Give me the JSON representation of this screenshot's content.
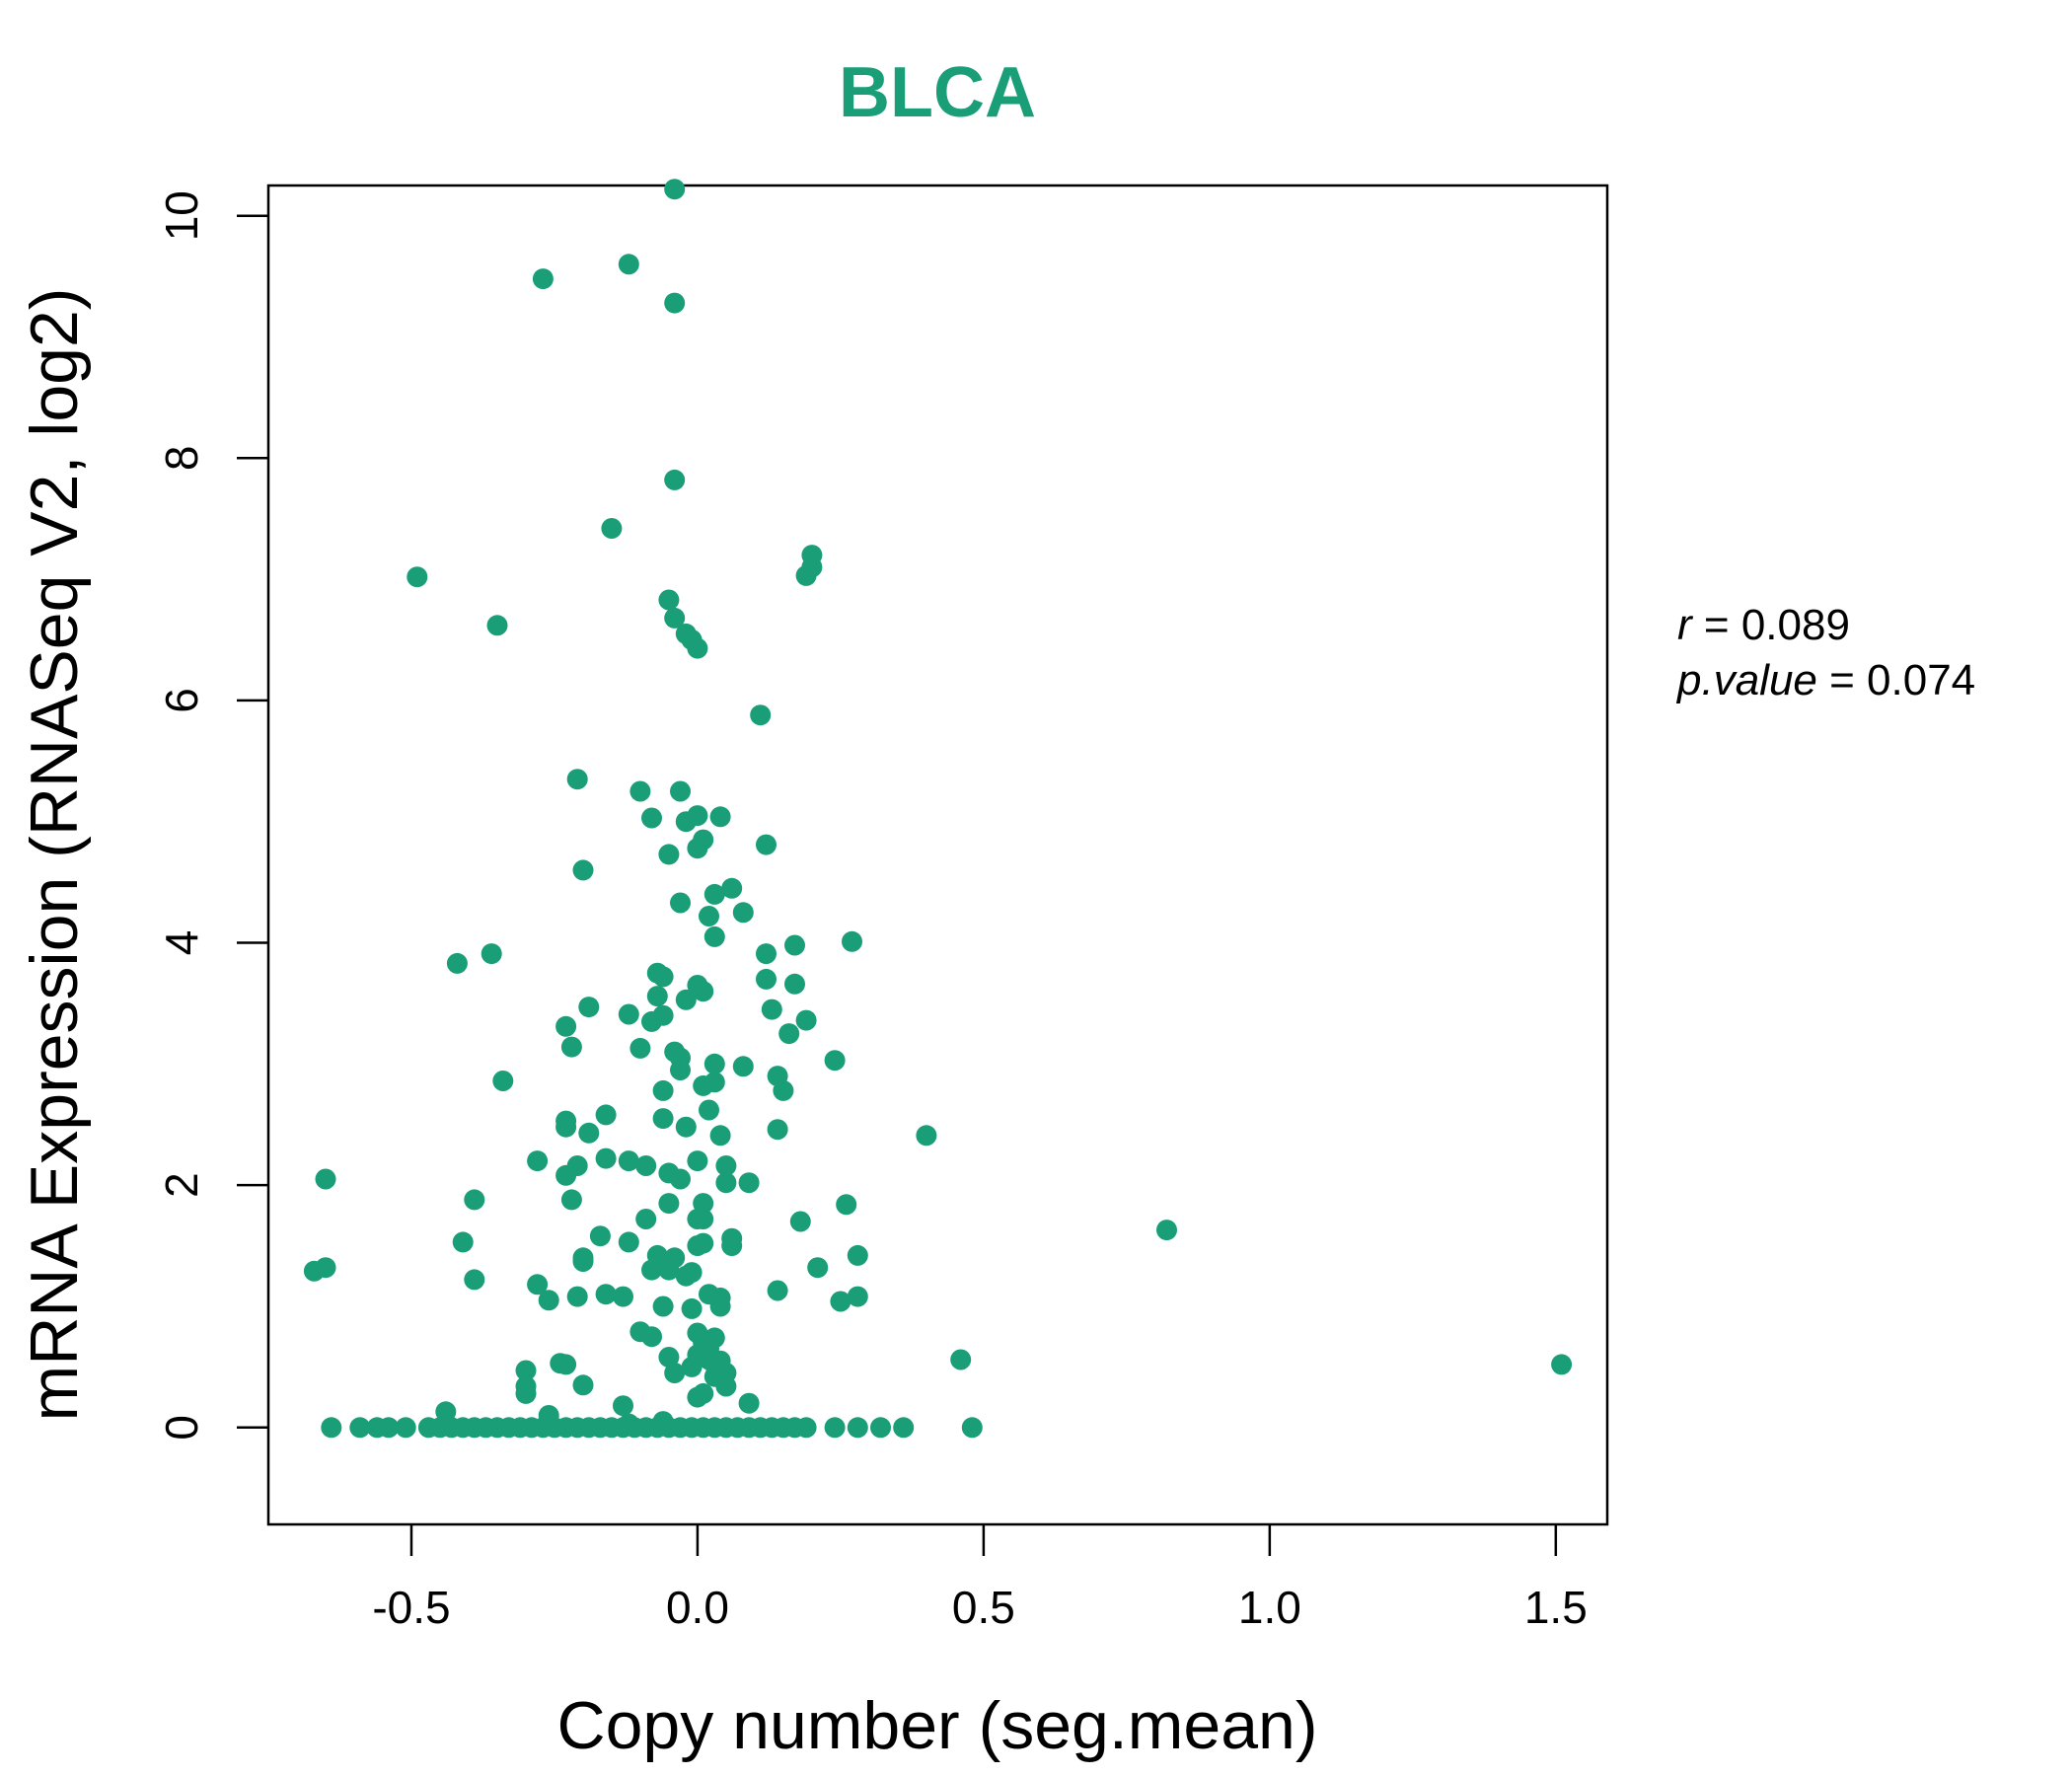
{
  "chart_data": {
    "type": "scatter",
    "title": "BLCA",
    "xlabel": "Copy number (seg.mean)",
    "ylabel": "mRNA Expression (RNASeq V2, log2)",
    "xlim": [
      -0.75,
      1.59
    ],
    "ylim": [
      -0.8,
      10.25
    ],
    "xticks": [
      -0.5,
      0.0,
      0.5,
      1.0,
      1.5
    ],
    "xtick_labels": [
      "-0.5",
      "0.0",
      "0.5",
      "1.0",
      "1.5"
    ],
    "yticks": [
      0,
      2,
      4,
      6,
      8,
      10
    ],
    "ytick_labels": [
      "0",
      "2",
      "4",
      "6",
      "8",
      "10"
    ],
    "grid": false,
    "point_color": "#1a9e77",
    "title_color": "#1a9e77",
    "stats": {
      "r_label": "r",
      "r_value": "0.089",
      "p_label": "p.value",
      "p_value": "0.074"
    },
    "points": [
      [
        -0.04,
        10.22
      ],
      [
        -0.12,
        9.6
      ],
      [
        -0.27,
        9.48
      ],
      [
        -0.04,
        9.28
      ],
      [
        -0.04,
        7.82
      ],
      [
        -0.15,
        7.42
      ],
      [
        -0.49,
        7.02
      ],
      [
        0.2,
        7.2
      ],
      [
        0.2,
        7.1
      ],
      [
        0.19,
        7.03
      ],
      [
        -0.05,
        6.83
      ],
      [
        -0.04,
        6.68
      ],
      [
        -0.02,
        6.55
      ],
      [
        -0.35,
        6.62
      ],
      [
        -0.01,
        6.5
      ],
      [
        0.0,
        6.43
      ],
      [
        0.11,
        5.88
      ],
      [
        -0.21,
        5.35
      ],
      [
        -0.1,
        5.25
      ],
      [
        -0.03,
        5.25
      ],
      [
        0.0,
        5.05
      ],
      [
        0.04,
        5.04
      ],
      [
        -0.08,
        5.03
      ],
      [
        -0.02,
        5.0
      ],
      [
        0.01,
        4.85
      ],
      [
        0.12,
        4.81
      ],
      [
        0.0,
        4.78
      ],
      [
        -0.05,
        4.73
      ],
      [
        -0.2,
        4.6
      ],
      [
        0.06,
        4.45
      ],
      [
        0.03,
        4.4
      ],
      [
        -0.03,
        4.33
      ],
      [
        0.08,
        4.25
      ],
      [
        0.02,
        4.22
      ],
      [
        0.27,
        4.01
      ],
      [
        0.03,
        4.05
      ],
      [
        0.17,
        3.98
      ],
      [
        -0.36,
        3.91
      ],
      [
        0.12,
        3.91
      ],
      [
        -0.42,
        3.83
      ],
      [
        -0.07,
        3.75
      ],
      [
        -0.06,
        3.72
      ],
      [
        0.12,
        3.7
      ],
      [
        0.17,
        3.66
      ],
      [
        0.0,
        3.65
      ],
      [
        0.01,
        3.6
      ],
      [
        -0.07,
        3.56
      ],
      [
        -0.02,
        3.53
      ],
      [
        -0.19,
        3.47
      ],
      [
        0.13,
        3.45
      ],
      [
        -0.12,
        3.41
      ],
      [
        -0.06,
        3.4
      ],
      [
        -0.08,
        3.35
      ],
      [
        0.19,
        3.36
      ],
      [
        -0.23,
        3.31
      ],
      [
        0.16,
        3.25
      ],
      [
        -0.22,
        3.14
      ],
      [
        -0.1,
        3.13
      ],
      [
        -0.04,
        3.1
      ],
      [
        -0.03,
        3.05
      ],
      [
        0.24,
        3.03
      ],
      [
        -0.03,
        2.95
      ],
      [
        0.03,
        3.0
      ],
      [
        0.08,
        2.98
      ],
      [
        0.14,
        2.9
      ],
      [
        -0.34,
        2.86
      ],
      [
        0.01,
        2.82
      ],
      [
        -0.06,
        2.78
      ],
      [
        0.03,
        2.85
      ],
      [
        0.15,
        2.78
      ],
      [
        0.02,
        2.62
      ],
      [
        -0.16,
        2.58
      ],
      [
        -0.06,
        2.55
      ],
      [
        -0.23,
        2.53
      ],
      [
        -0.23,
        2.48
      ],
      [
        -0.02,
        2.48
      ],
      [
        0.14,
        2.46
      ],
      [
        0.04,
        2.41
      ],
      [
        -0.19,
        2.43
      ],
      [
        0.4,
        2.41
      ],
      [
        -0.16,
        2.22
      ],
      [
        -0.12,
        2.2
      ],
      [
        -0.28,
        2.2
      ],
      [
        -0.09,
        2.16
      ],
      [
        0.0,
        2.2
      ],
      [
        0.05,
        2.16
      ],
      [
        -0.21,
        2.16
      ],
      [
        -0.05,
        2.1
      ],
      [
        -0.23,
        2.08
      ],
      [
        -0.03,
        2.05
      ],
      [
        -0.65,
        2.05
      ],
      [
        0.05,
        2.02
      ],
      [
        0.09,
        2.02
      ],
      [
        -0.39,
        1.88
      ],
      [
        -0.22,
        1.88
      ],
      [
        0.01,
        1.85
      ],
      [
        -0.05,
        1.85
      ],
      [
        0.26,
        1.84
      ],
      [
        0.01,
        1.72
      ],
      [
        0.0,
        1.72
      ],
      [
        -0.09,
        1.72
      ],
      [
        0.18,
        1.7
      ],
      [
        -0.2,
        1.4
      ],
      [
        -0.12,
        1.53
      ],
      [
        0.82,
        1.63
      ],
      [
        -0.41,
        1.53
      ],
      [
        0.06,
        1.56
      ],
      [
        0.06,
        1.5
      ],
      [
        0.0,
        1.5
      ],
      [
        -0.17,
        1.58
      ],
      [
        0.01,
        1.52
      ],
      [
        -0.07,
        1.42
      ],
      [
        -0.04,
        1.4
      ],
      [
        0.28,
        1.42
      ],
      [
        -0.2,
        1.37
      ],
      [
        -0.05,
        1.3
      ],
      [
        -0.08,
        1.3
      ],
      [
        -0.01,
        1.28
      ],
      [
        -0.02,
        1.25
      ],
      [
        0.21,
        1.32
      ],
      [
        -0.65,
        1.32
      ],
      [
        -0.67,
        1.29
      ],
      [
        -0.39,
        1.22
      ],
      [
        -0.28,
        1.18
      ],
      [
        0.14,
        1.13
      ],
      [
        -0.16,
        1.1
      ],
      [
        -0.21,
        1.08
      ],
      [
        -0.13,
        1.08
      ],
      [
        0.02,
        1.1
      ],
      [
        0.04,
        1.07
      ],
      [
        -0.06,
        1.0
      ],
      [
        0.25,
        1.04
      ],
      [
        0.28,
        1.08
      ],
      [
        -0.26,
        1.05
      ],
      [
        0.04,
        1.0
      ],
      [
        -0.01,
        0.98
      ],
      [
        0.0,
        0.78
      ],
      [
        -0.1,
        0.79
      ],
      [
        -0.08,
        0.75
      ],
      [
        0.03,
        0.74
      ],
      [
        0.02,
        0.65
      ],
      [
        0.0,
        0.6
      ],
      [
        0.01,
        0.7
      ],
      [
        -0.05,
        0.58
      ],
      [
        0.04,
        0.55
      ],
      [
        0.02,
        0.56
      ],
      [
        0.46,
        0.56
      ],
      [
        -0.24,
        0.53
      ],
      [
        -0.23,
        0.52
      ],
      [
        -0.01,
        0.5
      ],
      [
        0.03,
        0.52
      ],
      [
        -0.3,
        0.47
      ],
      [
        -0.04,
        0.45
      ],
      [
        0.05,
        0.45
      ],
      [
        0.03,
        0.42
      ],
      [
        -0.3,
        0.34
      ],
      [
        0.05,
        0.34
      ],
      [
        -0.2,
        0.35
      ],
      [
        -0.3,
        0.28
      ],
      [
        1.51,
        0.52
      ],
      [
        0.0,
        0.25
      ],
      [
        0.01,
        0.28
      ],
      [
        0.09,
        0.2
      ],
      [
        -0.13,
        0.18
      ],
      [
        -0.44,
        0.13
      ],
      [
        -0.26,
        0.1
      ],
      [
        -0.06,
        0.05
      ],
      [
        -0.12,
        0.03
      ],
      [
        -0.64,
        0
      ],
      [
        -0.59,
        0
      ],
      [
        -0.56,
        0
      ],
      [
        -0.54,
        0
      ],
      [
        -0.51,
        0
      ],
      [
        -0.47,
        0
      ],
      [
        -0.45,
        0
      ],
      [
        -0.43,
        0
      ],
      [
        -0.41,
        0
      ],
      [
        -0.39,
        0
      ],
      [
        -0.37,
        0
      ],
      [
        -0.35,
        0
      ],
      [
        -0.33,
        0
      ],
      [
        -0.31,
        0
      ],
      [
        -0.29,
        0
      ],
      [
        -0.27,
        0
      ],
      [
        -0.25,
        0
      ],
      [
        -0.23,
        0
      ],
      [
        -0.21,
        0
      ],
      [
        -0.19,
        0
      ],
      [
        -0.17,
        0
      ],
      [
        -0.15,
        0
      ],
      [
        -0.13,
        0
      ],
      [
        -0.11,
        0
      ],
      [
        -0.09,
        0
      ],
      [
        -0.07,
        0
      ],
      [
        -0.05,
        0
      ],
      [
        -0.03,
        0
      ],
      [
        -0.01,
        0
      ],
      [
        0.01,
        0
      ],
      [
        0.03,
        0
      ],
      [
        0.05,
        0
      ],
      [
        0.07,
        0
      ],
      [
        0.09,
        0
      ],
      [
        0.11,
        0
      ],
      [
        0.13,
        0
      ],
      [
        0.15,
        0
      ],
      [
        0.17,
        0
      ],
      [
        0.19,
        0
      ],
      [
        0.24,
        0
      ],
      [
        0.28,
        0
      ],
      [
        0.32,
        0
      ],
      [
        0.36,
        0
      ],
      [
        0.48,
        0
      ]
    ]
  }
}
